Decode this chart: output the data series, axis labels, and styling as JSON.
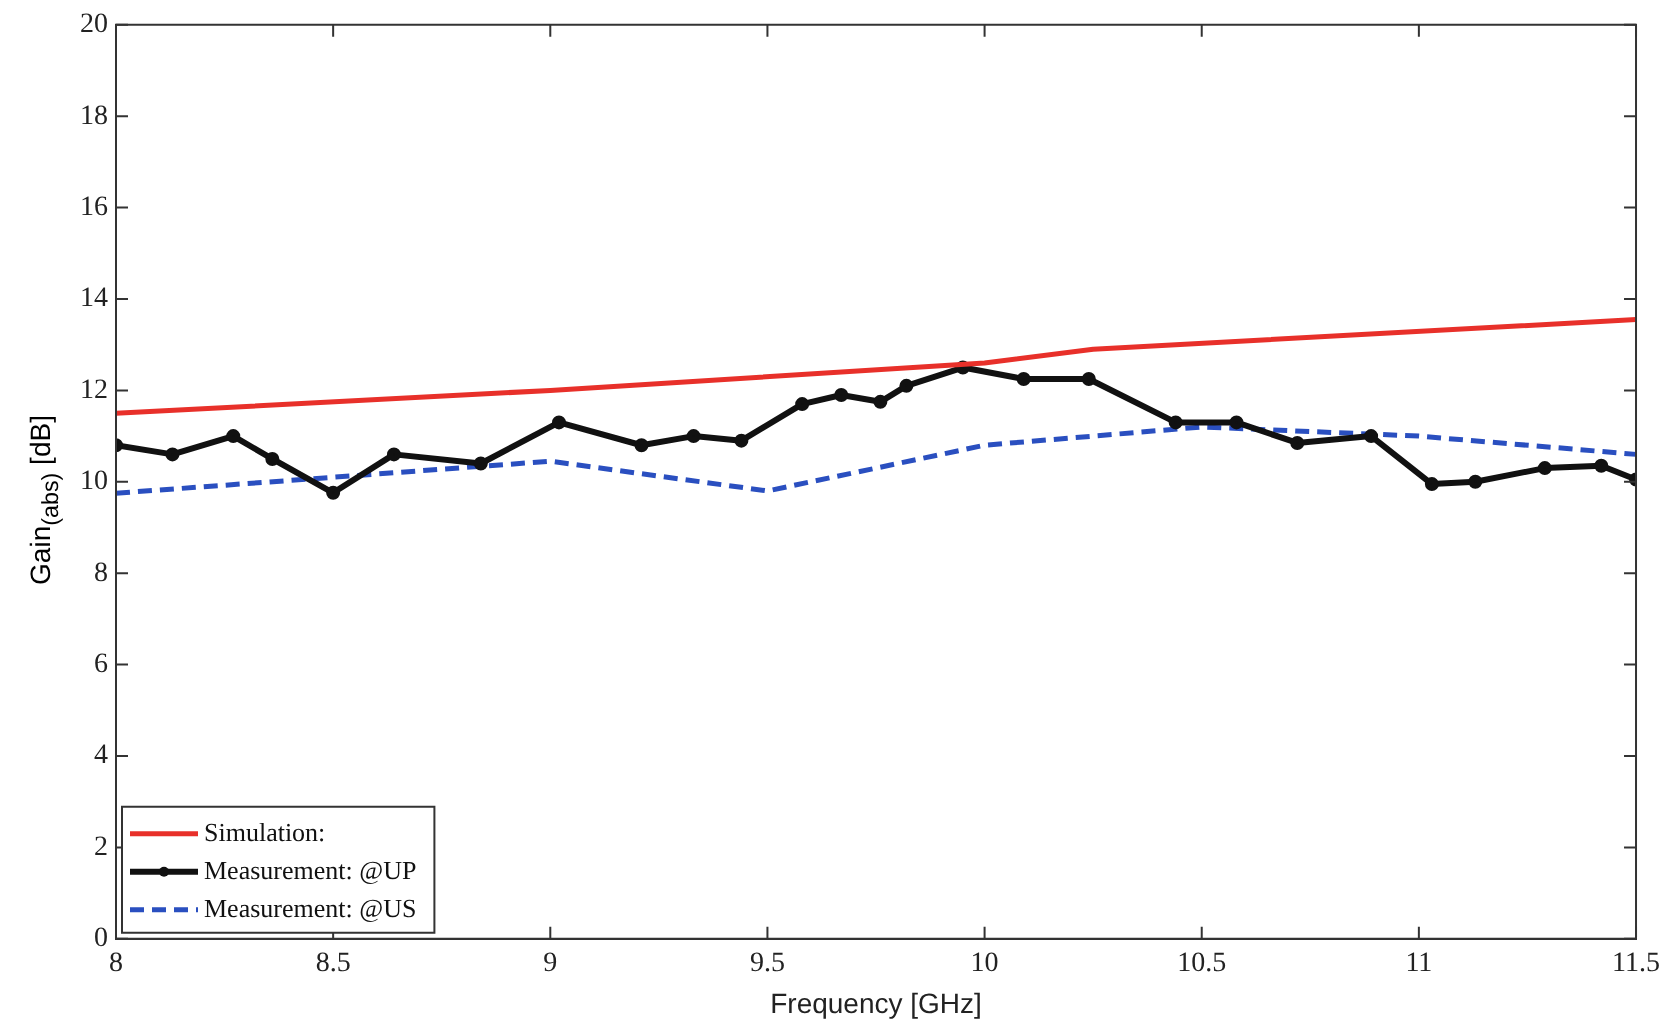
{
  "chart_data": {
    "type": "line",
    "xlabel": "Frequency [GHz]",
    "ylabel": "Gain$_{(abs)}$ [dB]",
    "xlim": [
      8,
      11.5
    ],
    "xticks": [
      8,
      8.5,
      9,
      9.5,
      10,
      10.5,
      11,
      11.5
    ],
    "ylim": [
      0,
      20
    ],
    "yticks": [
      0,
      2,
      4,
      6,
      8,
      10,
      12,
      14,
      16,
      18,
      20
    ],
    "grid": false,
    "legend": "bottom left",
    "series": [
      {
        "name": "Simulation:",
        "color": "#e8302a",
        "marker": "none",
        "line_style": "solid",
        "x": [
          8,
          9,
          10,
          10.25,
          11.5
        ],
        "values": [
          11.5,
          12.0,
          12.6,
          12.9,
          13.55
        ]
      },
      {
        "name": "Measurement: @UP",
        "color": "#111111",
        "marker": "circle",
        "line_style": "solid",
        "x": [
          8,
          8.13,
          8.27,
          8.36,
          8.5,
          8.64,
          8.84,
          9.02,
          9.21,
          9.33,
          9.44,
          9.58,
          9.67,
          9.76,
          9.82,
          9.95,
          10.09,
          10.24,
          10.44,
          10.58,
          10.72,
          10.89,
          11.03,
          11.13,
          11.29,
          11.42,
          11.5
        ],
        "values": [
          10.8,
          10.6,
          11.0,
          10.5,
          9.76,
          10.6,
          10.4,
          11.3,
          10.8,
          11.0,
          10.9,
          11.7,
          11.9,
          11.75,
          12.1,
          12.5,
          12.25,
          12.25,
          11.3,
          11.3,
          10.85,
          11.0,
          9.95,
          10.0,
          10.3,
          10.35,
          10.05
        ]
      },
      {
        "name": "Measurement: @US",
        "color": "#2a4fc0",
        "marker": "none",
        "line_style": "dashed",
        "x": [
          8,
          9,
          9.5,
          10,
          10.5,
          11,
          11.5
        ],
        "values": [
          9.75,
          10.45,
          9.8,
          10.8,
          11.2,
          11.0,
          10.6
        ]
      }
    ]
  }
}
